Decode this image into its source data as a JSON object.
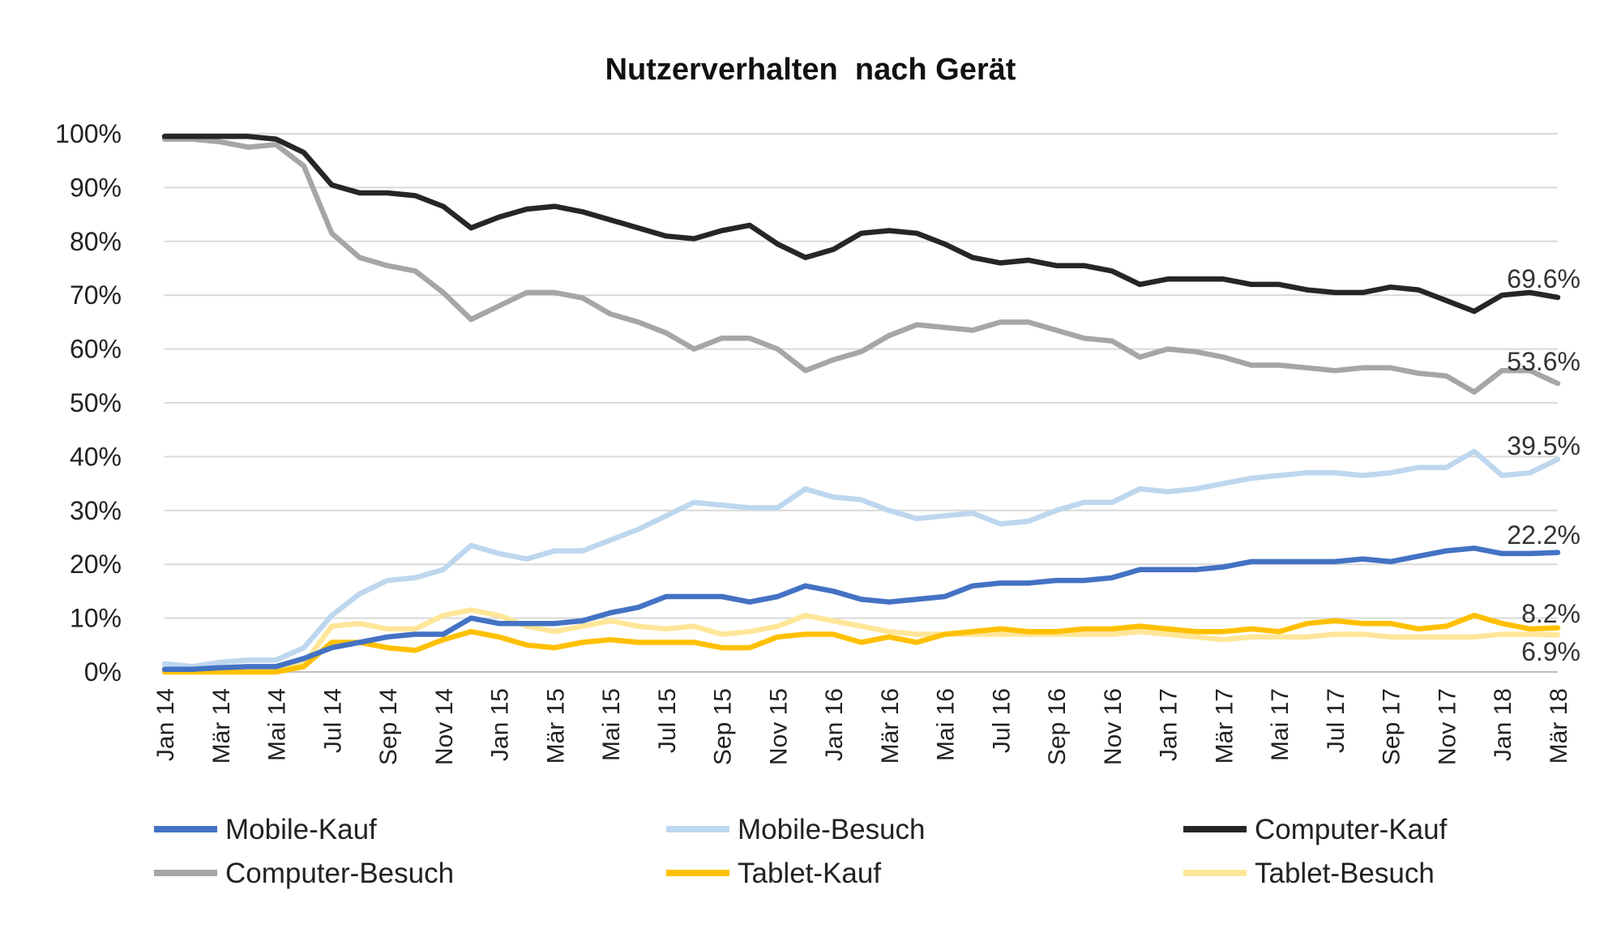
{
  "chart_data": {
    "type": "line",
    "title": "Nutzerverhalten  nach Gerät",
    "xlabel": "",
    "ylabel": "",
    "ylim": [
      0,
      100
    ],
    "y_ticks": [
      "0%",
      "10%",
      "20%",
      "30%",
      "40%",
      "50%",
      "60%",
      "70%",
      "80%",
      "90%",
      "100%"
    ],
    "x_tick_labels": [
      "Jan 14",
      "Mär 14",
      "Mai 14",
      "Jul 14",
      "Sep 14",
      "Nov 14",
      "Jan 15",
      "Mär 15",
      "Mai 15",
      "Jul 15",
      "Sep 15",
      "Nov 15",
      "Jan 16",
      "Mär 16",
      "Mai 16",
      "Jul 16",
      "Sep 16",
      "Nov 16",
      "Jan 17",
      "Mär 17",
      "Mai 17",
      "Jul 17",
      "Sep 17",
      "Nov 17",
      "Jan 18",
      "Mär 18"
    ],
    "x": [
      "Jan 14",
      "Feb 14",
      "Mär 14",
      "Apr 14",
      "Mai 14",
      "Jun 14",
      "Jul 14",
      "Aug 14",
      "Sep 14",
      "Okt 14",
      "Nov 14",
      "Dez 14",
      "Jan 15",
      "Feb 15",
      "Mär 15",
      "Apr 15",
      "Mai 15",
      "Jun 15",
      "Jul 15",
      "Aug 15",
      "Sep 15",
      "Okt 15",
      "Nov 15",
      "Dez 15",
      "Jan 16",
      "Feb 16",
      "Mär 16",
      "Apr 16",
      "Mai 16",
      "Jun 16",
      "Jul 16",
      "Aug 16",
      "Sep 16",
      "Okt 16",
      "Nov 16",
      "Dez 16",
      "Jan 17",
      "Feb 17",
      "Mär 17",
      "Apr 17",
      "Mai 17",
      "Jun 17",
      "Jul 17",
      "Aug 17",
      "Sep 17",
      "Okt 17",
      "Nov 17",
      "Dez 17",
      "Jan 18",
      "Feb 18",
      "Mär 18"
    ],
    "grid": true,
    "legend_position": "bottom",
    "series": [
      {
        "name": "Mobile-Kauf",
        "color": "#4472C4",
        "values": [
          0.5,
          0.5,
          0.8,
          1.0,
          1.0,
          2.5,
          4.5,
          5.5,
          6.5,
          7.0,
          7.0,
          10.0,
          9.0,
          9.0,
          9.0,
          9.5,
          11.0,
          12.0,
          14.0,
          14.0,
          14.0,
          13.0,
          14.0,
          16.0,
          15.0,
          13.5,
          13.0,
          13.5,
          14.0,
          16.0,
          16.5,
          16.5,
          17.0,
          17.0,
          17.5,
          19.0,
          19.0,
          19.0,
          19.5,
          20.5,
          20.5,
          20.5,
          20.5,
          21.0,
          20.5,
          21.5,
          22.5,
          23.0,
          22.0,
          22.0,
          22.2
        ]
      },
      {
        "name": "Mobile-Besuch",
        "color": "#BDD7EE",
        "values": [
          1.5,
          1.0,
          1.8,
          2.2,
          2.2,
          4.5,
          10.5,
          14.5,
          17.0,
          17.5,
          19.0,
          23.5,
          22.0,
          21.0,
          22.5,
          22.5,
          24.5,
          26.5,
          29.0,
          31.5,
          31.0,
          30.5,
          30.5,
          34.0,
          32.5,
          32.0,
          30.0,
          28.5,
          29.0,
          29.5,
          27.5,
          28.0,
          30.0,
          31.5,
          31.5,
          34.0,
          33.5,
          34.0,
          35.0,
          36.0,
          36.5,
          37.0,
          37.0,
          36.5,
          37.0,
          38.0,
          38.0,
          41.0,
          36.5,
          37.0,
          39.5
        ]
      },
      {
        "name": "Computer-Kauf",
        "color": "#262626",
        "values": [
          99.5,
          99.5,
          99.5,
          99.5,
          99.0,
          96.5,
          90.5,
          89.0,
          89.0,
          88.5,
          86.5,
          82.5,
          84.5,
          86.0,
          86.5,
          85.5,
          84.0,
          82.5,
          81.0,
          80.5,
          82.0,
          83.0,
          79.5,
          77.0,
          78.5,
          81.5,
          82.0,
          81.5,
          79.5,
          77.0,
          76.0,
          76.5,
          75.5,
          75.5,
          74.5,
          72.0,
          73.0,
          73.0,
          73.0,
          72.0,
          72.0,
          71.0,
          70.5,
          70.5,
          71.5,
          71.0,
          69.0,
          67.0,
          70.0,
          70.5,
          69.6
        ]
      },
      {
        "name": "Computer-Besuch",
        "color": "#A6A6A6",
        "values": [
          99.0,
          99.0,
          98.5,
          97.5,
          98.0,
          94.0,
          81.5,
          77.0,
          75.5,
          74.5,
          70.5,
          65.5,
          68.0,
          70.5,
          70.5,
          69.5,
          66.5,
          65.0,
          63.0,
          60.0,
          62.0,
          62.0,
          60.0,
          56.0,
          58.0,
          59.5,
          62.5,
          64.5,
          64.0,
          63.5,
          65.0,
          65.0,
          63.5,
          62.0,
          61.5,
          58.5,
          60.0,
          59.5,
          58.5,
          57.0,
          57.0,
          56.5,
          56.0,
          56.5,
          56.5,
          55.5,
          55.0,
          52.0,
          56.0,
          56.0,
          53.6
        ]
      },
      {
        "name": "Tablet-Kauf",
        "color": "#FFC000",
        "values": [
          0.0,
          0.0,
          0.0,
          0.0,
          0.0,
          1.0,
          5.5,
          5.5,
          4.5,
          4.0,
          6.0,
          7.5,
          6.5,
          5.0,
          4.5,
          5.5,
          6.0,
          5.5,
          5.5,
          5.5,
          4.5,
          4.5,
          6.5,
          7.0,
          7.0,
          5.5,
          6.5,
          5.5,
          7.0,
          7.5,
          8.0,
          7.5,
          7.5,
          8.0,
          8.0,
          8.5,
          8.0,
          7.5,
          7.5,
          8.0,
          7.5,
          9.0,
          9.5,
          9.0,
          9.0,
          8.0,
          8.5,
          10.5,
          9.0,
          8.0,
          8.2
        ]
      },
      {
        "name": "Tablet-Besuch",
        "color": "#FFE699",
        "values": [
          0.0,
          0.0,
          0.0,
          0.0,
          0.0,
          1.5,
          8.5,
          9.0,
          8.0,
          8.0,
          10.5,
          11.5,
          10.5,
          8.5,
          7.5,
          8.5,
          9.5,
          8.5,
          8.0,
          8.5,
          7.0,
          7.5,
          8.5,
          10.5,
          9.5,
          8.5,
          7.5,
          7.0,
          7.0,
          7.0,
          7.0,
          7.0,
          7.0,
          7.0,
          7.0,
          7.5,
          7.0,
          6.5,
          6.0,
          6.5,
          6.5,
          6.5,
          7.0,
          7.0,
          6.5,
          6.5,
          6.5,
          6.5,
          7.0,
          7.0,
          6.9
        ]
      }
    ],
    "end_labels": [
      {
        "series": "Computer-Kauf",
        "text": "69.6%"
      },
      {
        "series": "Computer-Besuch",
        "text": "53.6%"
      },
      {
        "series": "Mobile-Besuch",
        "text": "39.5%"
      },
      {
        "series": "Mobile-Kauf",
        "text": "22.2%"
      },
      {
        "series": "Tablet-Kauf",
        "text": "8.2%"
      },
      {
        "series": "Tablet-Besuch",
        "text": "6.9%"
      }
    ]
  }
}
